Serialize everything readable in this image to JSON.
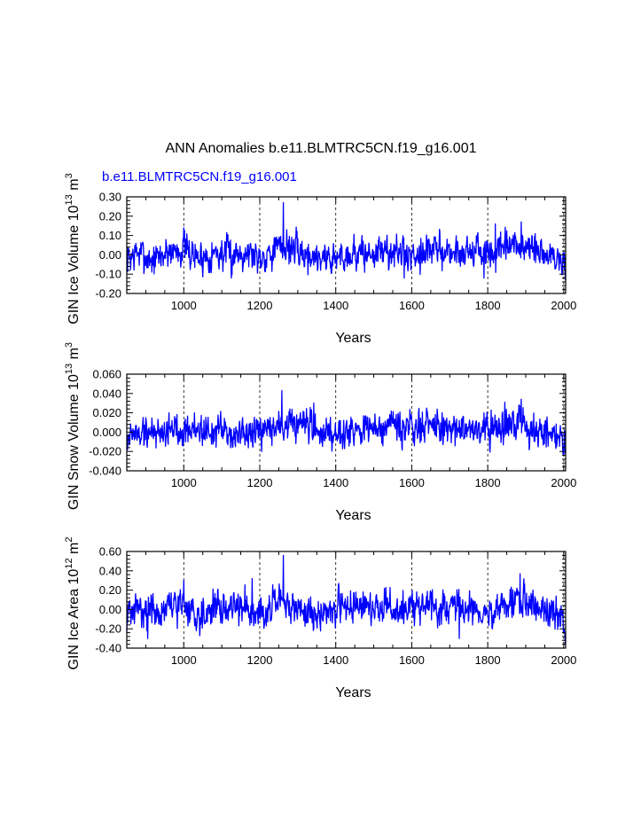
{
  "main_title": "ANN Anomalies b.e11.BLMTRC5CN.f19_g16.001",
  "chart_data": [
    {
      "type": "line",
      "series_name": "b.e11.BLMTRC5CN.f19_g16.001",
      "series_color": "#0000ff",
      "ylabel": "GIN Ice Volume 10",
      "ylabel_exp": "13",
      "ylabel_unit": " m",
      "ylabel_unit_exp": "3",
      "xlabel": "Years",
      "xlim": [
        850,
        2005
      ],
      "ylim": [
        -0.2,
        0.3
      ],
      "xticks": [
        "1000",
        "1200",
        "1400",
        "1600",
        "1800",
        "2000"
      ],
      "yticks": [
        "0.30",
        "0.20",
        "0.10",
        "0.00",
        "-0.10",
        "-0.20"
      ],
      "ytick_values": [
        0.3,
        0.2,
        0.1,
        0.0,
        -0.1,
        -0.2
      ],
      "vgrid": [
        1000,
        1200,
        1400,
        1600,
        1800,
        2000
      ],
      "amplitude": 0.04,
      "noise_seed": 7,
      "anchors": [
        [
          850,
          -0.02
        ],
        [
          880,
          0.01
        ],
        [
          920,
          -0.03
        ],
        [
          960,
          0.02
        ],
        [
          1000,
          0.03
        ],
        [
          1040,
          -0.02
        ],
        [
          1080,
          0.01
        ],
        [
          1120,
          0.0
        ],
        [
          1160,
          0.02
        ],
        [
          1200,
          -0.01
        ],
        [
          1240,
          0.03
        ],
        [
          1280,
          0.04
        ],
        [
          1320,
          0.0
        ],
        [
          1360,
          -0.01
        ],
        [
          1400,
          -0.02
        ],
        [
          1440,
          0.01
        ],
        [
          1480,
          0.0
        ],
        [
          1520,
          0.02
        ],
        [
          1560,
          0.01
        ],
        [
          1600,
          0.0
        ],
        [
          1640,
          0.03
        ],
        [
          1680,
          0.02
        ],
        [
          1720,
          0.01
        ],
        [
          1760,
          0.03
        ],
        [
          1800,
          0.0
        ],
        [
          1840,
          0.02
        ],
        [
          1880,
          0.05
        ],
        [
          1920,
          0.02
        ],
        [
          1960,
          0.0
        ],
        [
          2000,
          -0.04
        ],
        [
          2005,
          -0.07
        ]
      ],
      "peaks": [
        [
          1000,
          0.14
        ],
        [
          1262,
          0.27
        ],
        [
          1271,
          0.13
        ],
        [
          1820,
          0.16
        ],
        [
          1888,
          0.17
        ],
        [
          1790,
          -0.12
        ],
        [
          1580,
          -0.12
        ],
        [
          2004,
          -0.13
        ],
        [
          1125,
          -0.12
        ]
      ]
    },
    {
      "type": "line",
      "series_name": "",
      "series_color": "#0000ff",
      "ylabel": "GIN Snow Volume 10",
      "ylabel_exp": "13",
      "ylabel_unit": " m",
      "ylabel_unit_exp": "3",
      "xlabel": "Years",
      "xlim": [
        850,
        2005
      ],
      "ylim": [
        -0.04,
        0.06
      ],
      "xticks": [
        "1000",
        "1200",
        "1400",
        "1600",
        "1800",
        "2000"
      ],
      "yticks": [
        "0.060",
        "0.040",
        "0.020",
        "0.000",
        "-0.020",
        "-0.040"
      ],
      "ytick_values": [
        0.06,
        0.04,
        0.02,
        0.0,
        -0.02,
        -0.04
      ],
      "vgrid": [
        1000,
        1200,
        1400,
        1600,
        1800,
        2000
      ],
      "amplitude": 0.008,
      "noise_seed": 19,
      "anchors": [
        [
          850,
          -0.004
        ],
        [
          900,
          0.0
        ],
        [
          950,
          0.002
        ],
        [
          1000,
          0.004
        ],
        [
          1050,
          0.002
        ],
        [
          1100,
          0.0
        ],
        [
          1150,
          -0.002
        ],
        [
          1200,
          -0.003
        ],
        [
          1240,
          0.005
        ],
        [
          1270,
          0.008
        ],
        [
          1320,
          0.004
        ],
        [
          1360,
          0.0
        ],
        [
          1400,
          0.002
        ],
        [
          1450,
          0.004
        ],
        [
          1500,
          0.002
        ],
        [
          1550,
          0.003
        ],
        [
          1600,
          0.004
        ],
        [
          1650,
          0.005
        ],
        [
          1700,
          0.003
        ],
        [
          1750,
          0.005
        ],
        [
          1800,
          0.004
        ],
        [
          1850,
          0.005
        ],
        [
          1890,
          0.008
        ],
        [
          1930,
          0.004
        ],
        [
          1970,
          0.0
        ],
        [
          2005,
          -0.01
        ]
      ],
      "peaks": [
        [
          1258,
          0.043
        ],
        [
          1342,
          0.03
        ],
        [
          1888,
          0.034
        ],
        [
          1845,
          0.031
        ],
        [
          1205,
          -0.02
        ],
        [
          2004,
          -0.022
        ]
      ]
    },
    {
      "type": "line",
      "series_name": "",
      "series_color": "#0000ff",
      "ylabel": "GIN Ice Area 10",
      "ylabel_exp": "12",
      "ylabel_unit": " m",
      "ylabel_unit_exp": "2",
      "xlabel": "Years",
      "xlim": [
        850,
        2005
      ],
      "ylim": [
        -0.4,
        0.6
      ],
      "xticks": [
        "1000",
        "1200",
        "1400",
        "1600",
        "1800",
        "2000"
      ],
      "yticks": [
        "0.60",
        "0.40",
        "0.20",
        "0.00",
        "-0.20",
        "-0.40"
      ],
      "ytick_values": [
        0.6,
        0.4,
        0.2,
        0.0,
        -0.2,
        -0.4
      ],
      "vgrid": [
        1000,
        1200,
        1400,
        1600,
        1800,
        2000
      ],
      "amplitude": 0.08,
      "noise_seed": 31,
      "anchors": [
        [
          850,
          -0.05
        ],
        [
          890,
          0.02
        ],
        [
          930,
          -0.04
        ],
        [
          970,
          0.03
        ],
        [
          1000,
          0.05
        ],
        [
          1040,
          -0.06
        ],
        [
          1080,
          0.03
        ],
        [
          1120,
          0.0
        ],
        [
          1160,
          0.04
        ],
        [
          1200,
          -0.02
        ],
        [
          1240,
          0.05
        ],
        [
          1280,
          0.03
        ],
        [
          1320,
          -0.02
        ],
        [
          1360,
          -0.06
        ],
        [
          1400,
          0.02
        ],
        [
          1440,
          0.06
        ],
        [
          1480,
          0.0
        ],
        [
          1520,
          0.04
        ],
        [
          1560,
          -0.02
        ],
        [
          1600,
          0.01
        ],
        [
          1640,
          0.05
        ],
        [
          1680,
          0.0
        ],
        [
          1720,
          0.03
        ],
        [
          1760,
          0.0
        ],
        [
          1800,
          -0.05
        ],
        [
          1840,
          0.02
        ],
        [
          1880,
          0.12
        ],
        [
          1920,
          0.03
        ],
        [
          1960,
          -0.02
        ],
        [
          2000,
          -0.1
        ],
        [
          2005,
          -0.2
        ]
      ],
      "peaks": [
        [
          1262,
          0.56
        ],
        [
          1885,
          0.37
        ],
        [
          1000,
          0.3
        ],
        [
          1180,
          0.32
        ],
        [
          905,
          -0.3
        ],
        [
          1725,
          -0.3
        ],
        [
          2004,
          -0.36
        ]
      ]
    }
  ]
}
